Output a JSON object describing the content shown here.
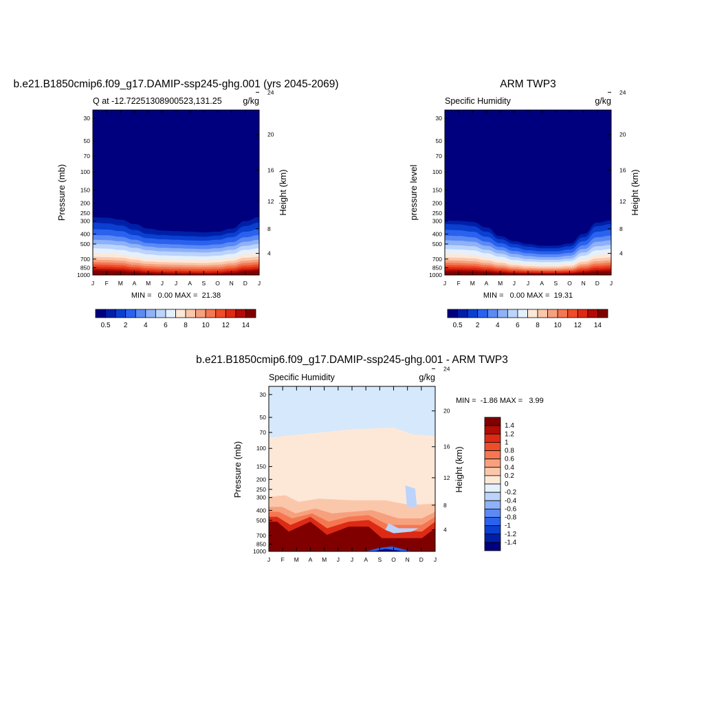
{
  "panels": [
    {
      "title": "b.e21.B1850cmip6.f09_g17.DAMIP-ssp245-ghg.001 (yrs 2045-2069)",
      "left_label": "Q at -12.72251308900523,131.25",
      "right_label": "g/kg",
      "ylabel": "Pressure (mb)",
      "y2label": "Height (km)",
      "minmax": "MIN =   0.00 MAX =  21.38"
    },
    {
      "title": "ARM TWP3",
      "left_label": "Specific Humidity",
      "right_label": "g/kg",
      "ylabel": "pressure level",
      "y2label": "Height (km)",
      "minmax": "MIN =   0.00 MAX =  19.31"
    },
    {
      "title": "b.e21.B1850cmip6.f09_g17.DAMIP-ssp245-ghg.001 - ARM TWP3",
      "left_label": "Specific Humidity",
      "right_label": "g/kg",
      "ylabel": "Pressure (mb)",
      "y2label": "Height (km)",
      "minmax": "MIN =  -1.86 MAX =   3.99"
    }
  ],
  "chart_data": [
    {
      "type": "heatmap",
      "x": [
        "J",
        "F",
        "M",
        "A",
        "M",
        "J",
        "J",
        "A",
        "S",
        "O",
        "N",
        "D",
        "J"
      ],
      "y_ticks": [
        30,
        50,
        70,
        100,
        150,
        200,
        250,
        300,
        400,
        500,
        700,
        850,
        1000
      ],
      "y2_ticks": [
        4,
        8,
        12,
        16,
        20,
        24
      ],
      "ylim": [
        1000,
        25
      ],
      "colorbar": {
        "labels": [
          "0.5",
          "2",
          "4",
          "6",
          "8",
          "10",
          "12",
          "14"
        ],
        "colors": [
          "#00007f",
          "#001fa8",
          "#0a3fd0",
          "#2a62ee",
          "#5b8af5",
          "#8eb1f7",
          "#bcd4fb",
          "#e4f0fd",
          "#fde8d8",
          "#fbc7ab",
          "#f7a07e",
          "#f47751",
          "#ef4c2a",
          "#dd2a14",
          "#b10c05",
          "#800000"
        ]
      },
      "contours_level_pressure_mb": [
        {
          "value": 0.5,
          "p": [
            275,
            278,
            290,
            320,
            355,
            370,
            375,
            380,
            385,
            380,
            355,
            300,
            275
          ]
        },
        {
          "value": 1,
          "p": [
            310,
            315,
            330,
            365,
            400,
            410,
            415,
            420,
            425,
            415,
            390,
            335,
            310
          ]
        },
        {
          "value": 2,
          "p": [
            360,
            362,
            375,
            410,
            440,
            450,
            455,
            462,
            465,
            455,
            430,
            380,
            360
          ]
        },
        {
          "value": 3,
          "p": [
            410,
            412,
            425,
            455,
            490,
            500,
            505,
            512,
            515,
            505,
            480,
            430,
            410
          ]
        },
        {
          "value": 4,
          "p": [
            455,
            458,
            470,
            500,
            530,
            545,
            550,
            555,
            560,
            550,
            525,
            475,
            455
          ]
        },
        {
          "value": 5,
          "p": [
            500,
            505,
            515,
            545,
            575,
            590,
            595,
            600,
            605,
            595,
            570,
            520,
            500
          ]
        },
        {
          "value": 6,
          "p": [
            550,
            555,
            570,
            600,
            630,
            645,
            650,
            655,
            660,
            650,
            625,
            570,
            550
          ]
        },
        {
          "value": 7,
          "p": [
            610,
            615,
            630,
            660,
            690,
            700,
            705,
            710,
            715,
            705,
            680,
            630,
            610
          ]
        },
        {
          "value": 8,
          "p": [
            665,
            670,
            680,
            710,
            740,
            750,
            755,
            760,
            765,
            755,
            730,
            680,
            665
          ]
        },
        {
          "value": 9,
          "p": [
            710,
            715,
            725,
            755,
            780,
            790,
            795,
            800,
            805,
            795,
            770,
            725,
            710
          ]
        },
        {
          "value": 10,
          "p": [
            750,
            755,
            765,
            795,
            820,
            830,
            835,
            840,
            842,
            835,
            810,
            765,
            750
          ]
        },
        {
          "value": 11,
          "p": [
            790,
            795,
            805,
            835,
            860,
            870,
            875,
            880,
            882,
            875,
            850,
            805,
            790
          ]
        },
        {
          "value": 12,
          "p": [
            830,
            835,
            845,
            870,
            895,
            905,
            910,
            915,
            918,
            910,
            885,
            845,
            830
          ]
        },
        {
          "value": 13,
          "p": [
            870,
            875,
            885,
            905,
            930,
            940,
            945,
            948,
            950,
            945,
            920,
            885,
            870
          ]
        },
        {
          "value": 14,
          "p": [
            905,
            910,
            920,
            940,
            960,
            970,
            975,
            978,
            980,
            975,
            955,
            920,
            905
          ]
        },
        {
          "value": 15,
          "p": [
            945,
            950,
            955,
            970,
            985,
            992,
            995,
            997,
            998,
            995,
            985,
            955,
            945
          ]
        }
      ]
    },
    {
      "type": "heatmap",
      "x": [
        "J",
        "F",
        "M",
        "A",
        "M",
        "J",
        "J",
        "A",
        "S",
        "O",
        "N",
        "D",
        "J"
      ],
      "y_ticks": [
        30,
        50,
        70,
        100,
        150,
        200,
        250,
        300,
        400,
        500,
        700,
        850,
        1000
      ],
      "y2_ticks": [
        4,
        8,
        12,
        16,
        20,
        24
      ],
      "ylim": [
        1000,
        25
      ],
      "colorbar": {
        "labels": [
          "0.5",
          "2",
          "4",
          "6",
          "8",
          "10",
          "12",
          "14"
        ],
        "colors": [
          "#00007f",
          "#001fa8",
          "#0a3fd0",
          "#2a62ee",
          "#5b8af5",
          "#8eb1f7",
          "#bcd4fb",
          "#e4f0fd",
          "#fde8d8",
          "#fbc7ab",
          "#f7a07e",
          "#f47751",
          "#ef4c2a",
          "#dd2a14",
          "#b10c05",
          "#800000"
        ]
      },
      "contours_level_pressure_mb": [
        {
          "value": 0.5,
          "p": [
            295,
            298,
            305,
            345,
            420,
            470,
            500,
            520,
            520,
            495,
            400,
            310,
            295
          ]
        },
        {
          "value": 1,
          "p": [
            320,
            323,
            335,
            380,
            450,
            500,
            530,
            550,
            550,
            525,
            430,
            335,
            320
          ]
        },
        {
          "value": 2,
          "p": [
            365,
            368,
            380,
            425,
            490,
            540,
            575,
            590,
            590,
            565,
            470,
            380,
            365
          ]
        },
        {
          "value": 3,
          "p": [
            415,
            418,
            430,
            475,
            535,
            585,
            615,
            630,
            630,
            610,
            515,
            430,
            415
          ]
        },
        {
          "value": 4,
          "p": [
            460,
            465,
            475,
            520,
            575,
            625,
            655,
            670,
            670,
            650,
            560,
            475,
            460
          ]
        },
        {
          "value": 5,
          "p": [
            510,
            515,
            525,
            570,
            620,
            670,
            700,
            712,
            712,
            695,
            605,
            525,
            510
          ]
        },
        {
          "value": 6,
          "p": [
            560,
            565,
            575,
            615,
            665,
            715,
            740,
            750,
            750,
            735,
            650,
            575,
            560
          ]
        },
        {
          "value": 7,
          "p": [
            620,
            625,
            635,
            670,
            715,
            760,
            785,
            795,
            795,
            780,
            700,
            635,
            620
          ]
        },
        {
          "value": 8,
          "p": [
            675,
            680,
            690,
            720,
            760,
            800,
            820,
            830,
            830,
            815,
            745,
            690,
            675
          ]
        },
        {
          "value": 9,
          "p": [
            720,
            725,
            735,
            765,
            800,
            835,
            855,
            862,
            862,
            850,
            785,
            735,
            720
          ]
        },
        {
          "value": 10,
          "p": [
            760,
            765,
            775,
            800,
            835,
            865,
            882,
            888,
            888,
            878,
            820,
            775,
            760
          ]
        },
        {
          "value": 11,
          "p": [
            800,
            805,
            812,
            835,
            865,
            892,
            905,
            910,
            910,
            902,
            855,
            812,
            800
          ]
        },
        {
          "value": 12,
          "p": [
            840,
            845,
            850,
            870,
            895,
            918,
            928,
            932,
            932,
            925,
            890,
            850,
            840
          ]
        },
        {
          "value": 13,
          "p": [
            880,
            885,
            890,
            905,
            925,
            945,
            952,
            955,
            955,
            950,
            920,
            890,
            880
          ]
        },
        {
          "value": 14,
          "p": [
            920,
            922,
            925,
            938,
            952,
            968,
            972,
            975,
            975,
            970,
            950,
            925,
            920
          ]
        },
        {
          "value": 15,
          "p": [
            955,
            957,
            960,
            968,
            978,
            988,
            990,
            992,
            992,
            990,
            980,
            960,
            955
          ]
        }
      ]
    },
    {
      "type": "heatmap",
      "x": [
        "J",
        "F",
        "M",
        "A",
        "M",
        "J",
        "J",
        "A",
        "S",
        "O",
        "N",
        "D",
        "J"
      ],
      "y_ticks": [
        30,
        50,
        70,
        100,
        150,
        200,
        250,
        300,
        400,
        500,
        700,
        850,
        1000
      ],
      "y2_ticks": [
        4,
        8,
        12,
        16,
        20,
        24
      ],
      "ylim": [
        1000,
        25
      ],
      "colorbar": {
        "labels": [
          "1.4",
          "1.2",
          "1",
          "0.8",
          "0.6",
          "0.4",
          "0.2",
          "0",
          "-0.2",
          "-0.4",
          "-0.6",
          "-0.8",
          "-1",
          "-1.2",
          "-1.4"
        ],
        "colors": [
          "#800000",
          "#b10c05",
          "#dd2a14",
          "#ef4c2a",
          "#f47751",
          "#f7a07e",
          "#fbc7ab",
          "#fde8d8",
          "#e4f0fd",
          "#bcd4fb",
          "#8eb1f7",
          "#5b8af5",
          "#2a62ee",
          "#0a3fd0",
          "#001fa8",
          "#00007f"
        ]
      },
      "regions": [
        {
          "value": -0.1,
          "description_levels": "above ~75 mb"
        },
        {
          "value": 0.1,
          "description_levels": "~75 mb to ~320 mb"
        },
        {
          "value": 0.3,
          "description_levels": "~320 mb to ~420 mb"
        },
        {
          "value": 1.5,
          "description_levels": "near surface, max in Apr and Jul-Aug"
        },
        {
          "value": -1.5,
          "description_levels": "near surface in Oct"
        }
      ]
    }
  ]
}
